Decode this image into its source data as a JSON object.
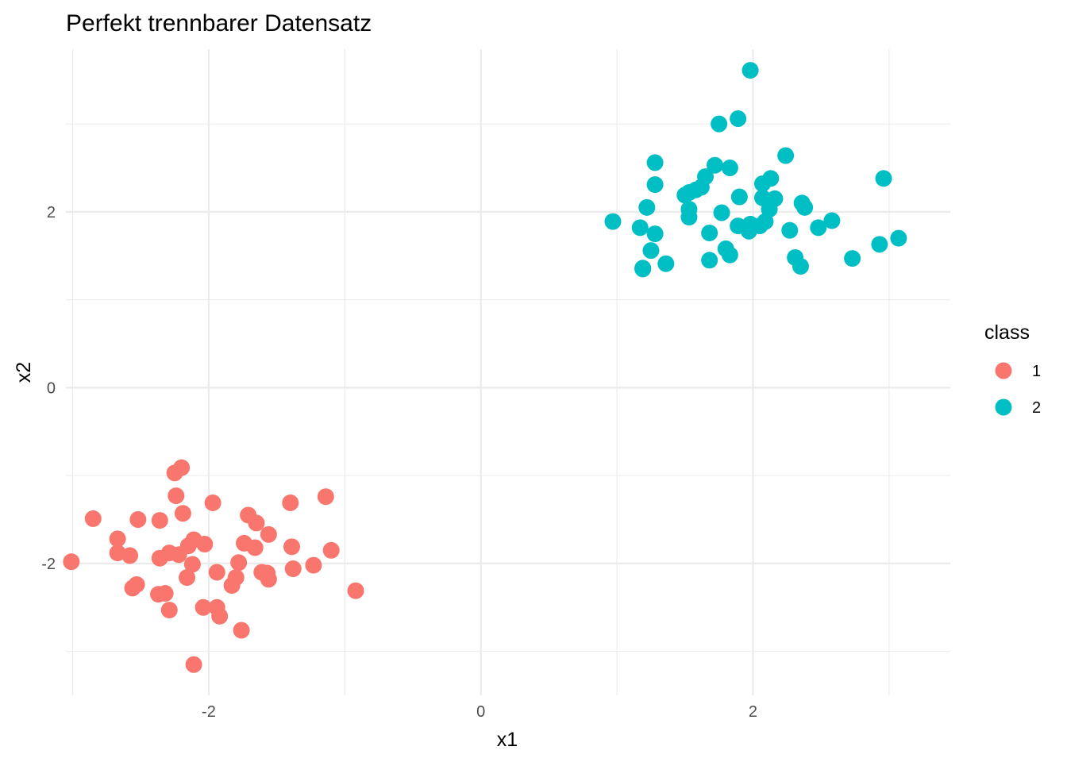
{
  "chart_data": {
    "type": "scatter",
    "title": "Perfekt trennbarer Datensatz",
    "xlabel": "x1",
    "ylabel": "x2",
    "xlim": [
      -3.05,
      3.45
    ],
    "ylim": [
      -3.5,
      3.85
    ],
    "x_ticks": [
      {
        "value": -2,
        "label": "-2"
      },
      {
        "value": 0,
        "label": "0"
      },
      {
        "value": 2,
        "label": "2"
      }
    ],
    "y_ticks": [
      {
        "value": -2,
        "label": "-2"
      },
      {
        "value": 0,
        "label": "0"
      },
      {
        "value": 2,
        "label": "2"
      }
    ],
    "x_minor": [
      -3,
      -1,
      1,
      3
    ],
    "y_minor": [
      -3,
      -1,
      1,
      3
    ],
    "grid": true,
    "legend": {
      "title": "class",
      "position": "right"
    },
    "series": [
      {
        "name": "1",
        "color": "#f8766d",
        "points": [
          [
            -3.01,
            -1.98
          ],
          [
            -2.85,
            -1.49
          ],
          [
            -2.67,
            -1.72
          ],
          [
            -2.67,
            -1.88
          ],
          [
            -2.58,
            -1.91
          ],
          [
            -2.56,
            -2.28
          ],
          [
            -2.53,
            -2.24
          ],
          [
            -2.52,
            -1.5
          ],
          [
            -2.36,
            -1.51
          ],
          [
            -2.36,
            -1.94
          ],
          [
            -2.37,
            -2.35
          ],
          [
            -2.32,
            -2.34
          ],
          [
            -2.29,
            -2.53
          ],
          [
            -2.29,
            -1.88
          ],
          [
            -2.25,
            -0.97
          ],
          [
            -2.24,
            -1.23
          ],
          [
            -2.22,
            -1.9
          ],
          [
            -2.2,
            -0.91
          ],
          [
            -2.19,
            -1.43
          ],
          [
            -2.16,
            -2.16
          ],
          [
            -2.15,
            -1.8
          ],
          [
            -2.11,
            -1.73
          ],
          [
            -2.12,
            -2.01
          ],
          [
            -2.11,
            -3.15
          ],
          [
            -2.04,
            -2.5
          ],
          [
            -2.03,
            -1.78
          ],
          [
            -1.97,
            -1.31
          ],
          [
            -1.94,
            -2.5
          ],
          [
            -1.94,
            -2.1
          ],
          [
            -1.92,
            -2.6
          ],
          [
            -1.83,
            -2.25
          ],
          [
            -1.8,
            -2.16
          ],
          [
            -1.78,
            -1.99
          ],
          [
            -1.76,
            -2.76
          ],
          [
            -1.74,
            -1.77
          ],
          [
            -1.71,
            -1.45
          ],
          [
            -1.66,
            -1.82
          ],
          [
            -1.65,
            -1.54
          ],
          [
            -1.61,
            -2.1
          ],
          [
            -1.57,
            -2.11
          ],
          [
            -1.56,
            -2.18
          ],
          [
            -1.56,
            -1.67
          ],
          [
            -1.4,
            -1.31
          ],
          [
            -1.39,
            -1.81
          ],
          [
            -1.38,
            -2.06
          ],
          [
            -1.23,
            -2.02
          ],
          [
            -1.14,
            -1.24
          ],
          [
            -1.1,
            -1.85
          ],
          [
            -0.92,
            -2.31
          ]
        ]
      },
      {
        "name": "2",
        "color": "#00bfc4",
        "points": [
          [
            0.97,
            1.89
          ],
          [
            1.17,
            1.82
          ],
          [
            1.19,
            1.36
          ],
          [
            1.19,
            1.35
          ],
          [
            1.22,
            2.05
          ],
          [
            1.25,
            1.56
          ],
          [
            1.28,
            2.56
          ],
          [
            1.28,
            2.31
          ],
          [
            1.28,
            1.75
          ],
          [
            1.36,
            1.41
          ],
          [
            1.5,
            2.19
          ],
          [
            1.53,
            2.22
          ],
          [
            1.53,
            2.03
          ],
          [
            1.53,
            1.94
          ],
          [
            1.58,
            2.25
          ],
          [
            1.62,
            2.28
          ],
          [
            1.65,
            2.4
          ],
          [
            1.68,
            1.76
          ],
          [
            1.68,
            1.45
          ],
          [
            1.72,
            2.53
          ],
          [
            1.75,
            3.0
          ],
          [
            1.77,
            1.99
          ],
          [
            1.8,
            1.58
          ],
          [
            1.83,
            1.51
          ],
          [
            1.83,
            2.5
          ],
          [
            1.89,
            1.84
          ],
          [
            1.89,
            3.06
          ],
          [
            1.9,
            2.17
          ],
          [
            1.98,
            3.61
          ],
          [
            1.97,
            1.78
          ],
          [
            1.98,
            1.86
          ],
          [
            2.05,
            1.84
          ],
          [
            2.07,
            2.16
          ],
          [
            2.07,
            2.32
          ],
          [
            2.09,
            1.89
          ],
          [
            2.12,
            2.03
          ],
          [
            2.13,
            2.38
          ],
          [
            2.16,
            2.15
          ],
          [
            2.24,
            2.64
          ],
          [
            2.27,
            1.79
          ],
          [
            2.31,
            1.48
          ],
          [
            2.35,
            1.38
          ],
          [
            2.36,
            2.1
          ],
          [
            2.38,
            2.05
          ],
          [
            2.48,
            1.82
          ],
          [
            2.58,
            1.9
          ],
          [
            2.73,
            1.47
          ],
          [
            2.93,
            1.63
          ],
          [
            2.96,
            2.38
          ],
          [
            3.07,
            1.7
          ]
        ]
      }
    ]
  }
}
